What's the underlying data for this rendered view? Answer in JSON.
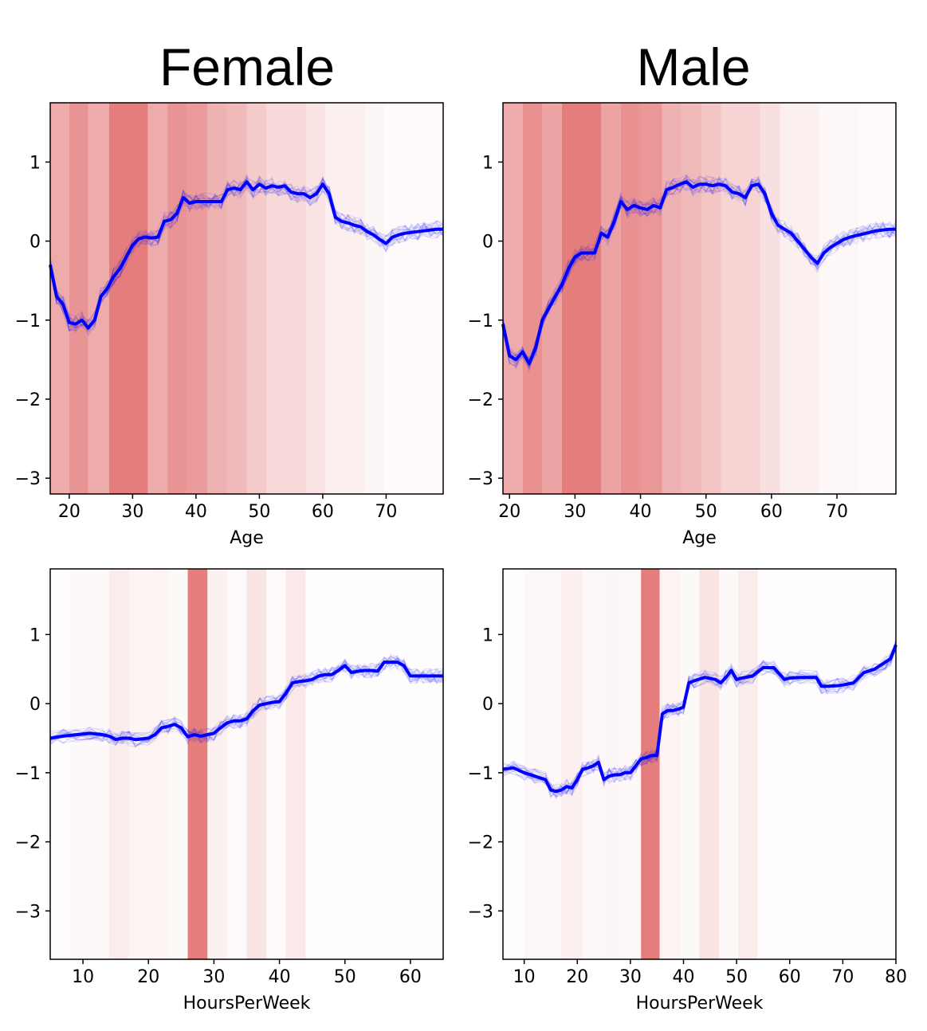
{
  "column_titles": [
    "Female",
    "Male"
  ],
  "colors": {
    "band": "#e06666",
    "mean_line": "#0000ff",
    "sample_line": "#0000ff"
  },
  "chart_data": [
    {
      "type": "line",
      "group": "Female",
      "xlabel": "Age",
      "ylabel": "",
      "xlim": [
        17,
        79
      ],
      "ylim": [
        -3.2,
        1.75
      ],
      "xticks": [
        20,
        30,
        40,
        50,
        60,
        70
      ],
      "yticks": [
        1,
        0,
        -1,
        -2,
        -3
      ],
      "density_bands": [
        {
          "x0": 17,
          "x1": 20,
          "alpha": 0.55
        },
        {
          "x0": 20,
          "x1": 23,
          "alpha": 0.7
        },
        {
          "x0": 23,
          "x1": 26.3,
          "alpha": 0.55
        },
        {
          "x0": 26.3,
          "x1": 32.4,
          "alpha": 0.85
        },
        {
          "x0": 32.4,
          "x1": 35.5,
          "alpha": 0.55
        },
        {
          "x0": 35.5,
          "x1": 38.6,
          "alpha": 0.7
        },
        {
          "x0": 38.6,
          "x1": 41.8,
          "alpha": 0.65
        },
        {
          "x0": 41.8,
          "x1": 44.9,
          "alpha": 0.5
        },
        {
          "x0": 44.9,
          "x1": 48,
          "alpha": 0.45
        },
        {
          "x0": 48,
          "x1": 51.1,
          "alpha": 0.35
        },
        {
          "x0": 51.1,
          "x1": 57.3,
          "alpha": 0.25
        },
        {
          "x0": 57.3,
          "x1": 60.4,
          "alpha": 0.18
        },
        {
          "x0": 60.4,
          "x1": 66.6,
          "alpha": 0.1
        },
        {
          "x0": 66.6,
          "x1": 69.7,
          "alpha": 0.06
        },
        {
          "x0": 69.7,
          "x1": 79,
          "alpha": 0.03
        }
      ],
      "series": [
        {
          "name": "mean",
          "x": [
            17,
            18,
            19,
            20,
            21,
            22,
            23,
            24,
            25,
            26,
            27,
            28,
            29,
            30,
            31,
            32,
            33,
            34,
            35,
            36,
            37,
            38,
            39,
            40,
            41,
            42,
            43,
            44,
            45,
            46,
            47,
            48,
            49,
            50,
            51,
            52,
            53,
            54,
            55,
            56,
            57,
            58,
            59,
            60,
            61,
            62,
            63,
            64,
            65,
            66,
            67,
            68,
            69,
            70,
            71,
            72,
            73,
            74,
            75,
            76,
            77,
            78,
            79
          ],
          "values": [
            -0.3,
            -0.7,
            -0.8,
            -1.03,
            -1.05,
            -1.0,
            -1.1,
            -1.0,
            -0.7,
            -0.6,
            -0.45,
            -0.35,
            -0.2,
            -0.05,
            0.03,
            0.05,
            0.04,
            0.05,
            0.25,
            0.27,
            0.35,
            0.55,
            0.48,
            0.5,
            0.5,
            0.5,
            0.5,
            0.5,
            0.65,
            0.67,
            0.65,
            0.75,
            0.65,
            0.72,
            0.67,
            0.7,
            0.68,
            0.7,
            0.62,
            0.6,
            0.6,
            0.55,
            0.6,
            0.72,
            0.6,
            0.3,
            0.25,
            0.23,
            0.2,
            0.18,
            0.12,
            0.08,
            0.02,
            -0.03,
            0.05,
            0.08,
            0.1,
            0.11,
            0.12,
            0.13,
            0.14,
            0.15,
            0.15
          ]
        }
      ]
    },
    {
      "type": "line",
      "group": "Male",
      "xlabel": "Age",
      "ylabel": "",
      "xlim": [
        19,
        79
      ],
      "ylim": [
        -3.2,
        1.75
      ],
      "xticks": [
        20,
        30,
        40,
        50,
        60,
        70
      ],
      "yticks": [
        1,
        0,
        -1,
        -2,
        -3
      ],
      "density_bands": [
        {
          "x0": 19,
          "x1": 22,
          "alpha": 0.55
        },
        {
          "x0": 22,
          "x1": 25,
          "alpha": 0.72
        },
        {
          "x0": 25,
          "x1": 28,
          "alpha": 0.6
        },
        {
          "x0": 28,
          "x1": 34,
          "alpha": 0.85
        },
        {
          "x0": 34,
          "x1": 37,
          "alpha": 0.6
        },
        {
          "x0": 37,
          "x1": 40,
          "alpha": 0.72
        },
        {
          "x0": 40,
          "x1": 43.3,
          "alpha": 0.68
        },
        {
          "x0": 43.3,
          "x1": 46.3,
          "alpha": 0.5
        },
        {
          "x0": 46.3,
          "x1": 49.3,
          "alpha": 0.45
        },
        {
          "x0": 49.3,
          "x1": 52.3,
          "alpha": 0.38
        },
        {
          "x0": 52.3,
          "x1": 58.3,
          "alpha": 0.28
        },
        {
          "x0": 58.3,
          "x1": 61.3,
          "alpha": 0.2
        },
        {
          "x0": 61.3,
          "x1": 67.3,
          "alpha": 0.1
        },
        {
          "x0": 67.3,
          "x1": 73.3,
          "alpha": 0.05
        },
        {
          "x0": 73.3,
          "x1": 79,
          "alpha": 0.03
        }
      ],
      "series": [
        {
          "name": "mean",
          "x": [
            19,
            20,
            21,
            22,
            23,
            24,
            25,
            26,
            27,
            28,
            29,
            30,
            31,
            32,
            33,
            34,
            35,
            36,
            37,
            38,
            39,
            40,
            41,
            42,
            43,
            44,
            45,
            46,
            47,
            48,
            49,
            50,
            51,
            52,
            53,
            54,
            55,
            56,
            57,
            58,
            59,
            60,
            61,
            62,
            63,
            64,
            65,
            66,
            67,
            68,
            69,
            70,
            71,
            72,
            73,
            74,
            75,
            76,
            77,
            78,
            79
          ],
          "values": [
            -1.05,
            -1.45,
            -1.5,
            -1.4,
            -1.55,
            -1.35,
            -1.0,
            -0.85,
            -0.7,
            -0.55,
            -0.35,
            -0.2,
            -0.15,
            -0.15,
            -0.15,
            0.1,
            0.05,
            0.25,
            0.5,
            0.4,
            0.45,
            0.42,
            0.4,
            0.45,
            0.42,
            0.65,
            0.68,
            0.72,
            0.75,
            0.68,
            0.72,
            0.72,
            0.7,
            0.72,
            0.7,
            0.62,
            0.6,
            0.55,
            0.7,
            0.72,
            0.6,
            0.35,
            0.2,
            0.15,
            0.1,
            0.0,
            -0.1,
            -0.2,
            -0.28,
            -0.15,
            -0.08,
            -0.03,
            0.02,
            0.05,
            0.07,
            0.09,
            0.11,
            0.13,
            0.14,
            0.15,
            0.15
          ]
        }
      ]
    },
    {
      "type": "line",
      "group": "Female",
      "xlabel": "HoursPerWeek",
      "ylabel": "",
      "xlim": [
        5,
        65
      ],
      "ylim": [
        -3.7,
        1.95
      ],
      "xticks": [
        10,
        20,
        30,
        40,
        50,
        60
      ],
      "yticks": [
        1,
        0,
        -1,
        -2,
        -3
      ],
      "density_bands": [
        {
          "x0": 5,
          "x1": 8,
          "alpha": 0.02
        },
        {
          "x0": 8,
          "x1": 14,
          "alpha": 0.04
        },
        {
          "x0": 14,
          "x1": 17,
          "alpha": 0.12
        },
        {
          "x0": 17,
          "x1": 20,
          "alpha": 0.07
        },
        {
          "x0": 20,
          "x1": 23,
          "alpha": 0.08
        },
        {
          "x0": 23,
          "x1": 26,
          "alpha": 0.04
        },
        {
          "x0": 26,
          "x1": 29,
          "alpha": 0.85
        },
        {
          "x0": 29,
          "x1": 32,
          "alpha": 0.1
        },
        {
          "x0": 32,
          "x1": 35,
          "alpha": 0.03
        },
        {
          "x0": 35,
          "x1": 38,
          "alpha": 0.18
        },
        {
          "x0": 38,
          "x1": 41,
          "alpha": 0.03
        },
        {
          "x0": 41,
          "x1": 44,
          "alpha": 0.14
        },
        {
          "x0": 44,
          "x1": 65,
          "alpha": 0.02
        }
      ],
      "series": [
        {
          "name": "mean",
          "x": [
            5,
            7,
            9,
            11,
            13,
            14,
            15,
            16,
            17,
            18,
            20,
            21,
            22,
            23,
            24,
            25,
            26,
            27,
            28,
            29,
            30,
            31,
            32,
            33,
            34,
            35,
            36,
            37,
            38,
            39,
            40,
            41,
            42,
            43,
            44,
            45,
            46,
            47,
            48,
            49,
            50,
            51,
            52,
            53,
            54,
            55,
            56,
            57,
            58,
            59,
            60,
            61,
            62,
            63,
            64,
            65
          ],
          "values": [
            -0.5,
            -0.47,
            -0.45,
            -0.43,
            -0.45,
            -0.47,
            -0.52,
            -0.5,
            -0.5,
            -0.52,
            -0.5,
            -0.45,
            -0.35,
            -0.33,
            -0.3,
            -0.35,
            -0.48,
            -0.45,
            -0.47,
            -0.45,
            -0.43,
            -0.35,
            -0.28,
            -0.25,
            -0.25,
            -0.22,
            -0.1,
            -0.02,
            0.0,
            0.02,
            0.03,
            0.15,
            0.3,
            0.32,
            0.33,
            0.35,
            0.4,
            0.42,
            0.42,
            0.48,
            0.55,
            0.45,
            0.47,
            0.48,
            0.48,
            0.47,
            0.6,
            0.6,
            0.6,
            0.55,
            0.4,
            0.4,
            0.4,
            0.4,
            0.4,
            0.4
          ]
        }
      ]
    },
    {
      "type": "line",
      "group": "Male",
      "xlabel": "HoursPerWeek",
      "ylabel": "",
      "xlim": [
        6,
        80
      ],
      "ylim": [
        -3.7,
        1.95
      ],
      "xticks": [
        10,
        20,
        30,
        40,
        50,
        60,
        70,
        80
      ],
      "yticks": [
        1,
        0,
        -1,
        -2,
        -3
      ],
      "density_bands": [
        {
          "x0": 6,
          "x1": 10,
          "alpha": 0.02
        },
        {
          "x0": 10,
          "x1": 17,
          "alpha": 0.05
        },
        {
          "x0": 17,
          "x1": 21,
          "alpha": 0.1
        },
        {
          "x0": 21,
          "x1": 25,
          "alpha": 0.05
        },
        {
          "x0": 25,
          "x1": 28,
          "alpha": 0.06
        },
        {
          "x0": 28,
          "x1": 32,
          "alpha": 0.05
        },
        {
          "x0": 32,
          "x1": 35.5,
          "alpha": 0.85
        },
        {
          "x0": 35.5,
          "x1": 39.5,
          "alpha": 0.08
        },
        {
          "x0": 39.5,
          "x1": 43,
          "alpha": 0.04
        },
        {
          "x0": 43,
          "x1": 46.7,
          "alpha": 0.18
        },
        {
          "x0": 46.7,
          "x1": 50.3,
          "alpha": 0.04
        },
        {
          "x0": 50.3,
          "x1": 54,
          "alpha": 0.12
        },
        {
          "x0": 54,
          "x1": 80,
          "alpha": 0.02
        }
      ],
      "series": [
        {
          "name": "mean",
          "x": [
            6,
            8,
            10,
            12,
            14,
            15,
            16,
            17,
            18,
            19,
            20,
            21,
            22,
            23,
            24,
            25,
            26,
            27,
            28,
            29,
            30,
            31,
            32,
            33,
            34,
            35,
            36,
            37,
            38,
            39,
            40,
            41,
            42,
            44,
            46,
            47,
            48,
            49,
            50,
            51,
            53,
            55,
            57,
            59,
            60,
            62,
            65,
            66,
            67,
            69,
            70,
            72,
            74,
            76,
            78,
            79,
            80
          ],
          "values": [
            -0.95,
            -0.93,
            -1.0,
            -1.05,
            -1.1,
            -1.25,
            -1.27,
            -1.25,
            -1.2,
            -1.22,
            -1.1,
            -0.95,
            -0.93,
            -0.9,
            -0.85,
            -1.1,
            -1.05,
            -1.03,
            -1.03,
            -1.0,
            -1.0,
            -0.9,
            -0.8,
            -0.78,
            -0.75,
            -0.75,
            -0.15,
            -0.1,
            -0.1,
            -0.08,
            -0.05,
            0.3,
            0.33,
            0.38,
            0.35,
            0.3,
            0.38,
            0.48,
            0.35,
            0.37,
            0.4,
            0.52,
            0.52,
            0.35,
            0.37,
            0.38,
            0.38,
            0.25,
            0.25,
            0.26,
            0.27,
            0.3,
            0.45,
            0.5,
            0.6,
            0.65,
            0.85
          ]
        }
      ]
    }
  ]
}
